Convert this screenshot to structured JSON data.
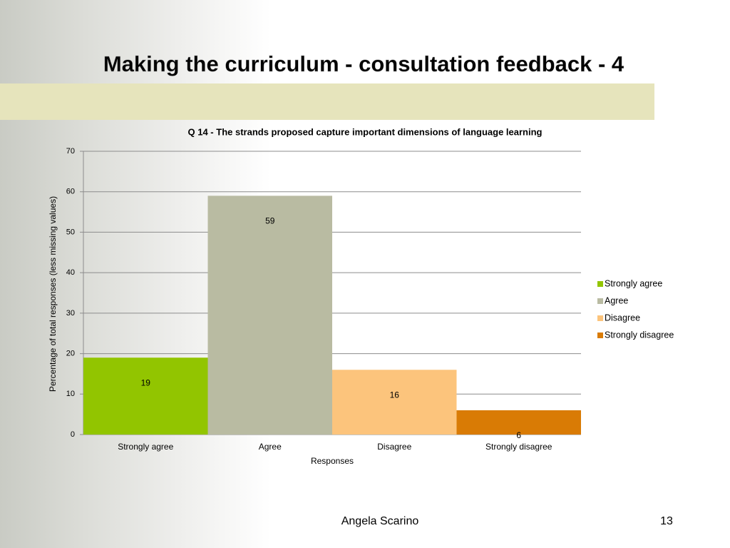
{
  "slide": {
    "title": "Making the curriculum - consultation feedback - 4",
    "footer": "Angela Scarino",
    "page_number": "13"
  },
  "chart_data": {
    "type": "bar",
    "title": "Q 14 - The strands proposed capture important dimensions of language learning",
    "x_label": "Responses",
    "y_label": "Percentage of total responses (less missing values)",
    "categories": [
      "Strongly agree",
      "Agree",
      "Disagree",
      "Strongly disagree"
    ],
    "values": [
      19,
      59,
      16,
      6
    ],
    "colors": [
      "#92c500",
      "#b9bba2",
      "#fcc47c",
      "#d97b05"
    ],
    "ylim": [
      0,
      70
    ],
    "yticks": [
      0,
      10,
      20,
      30,
      40,
      50,
      60,
      70
    ],
    "grid": true,
    "legend": "right"
  }
}
